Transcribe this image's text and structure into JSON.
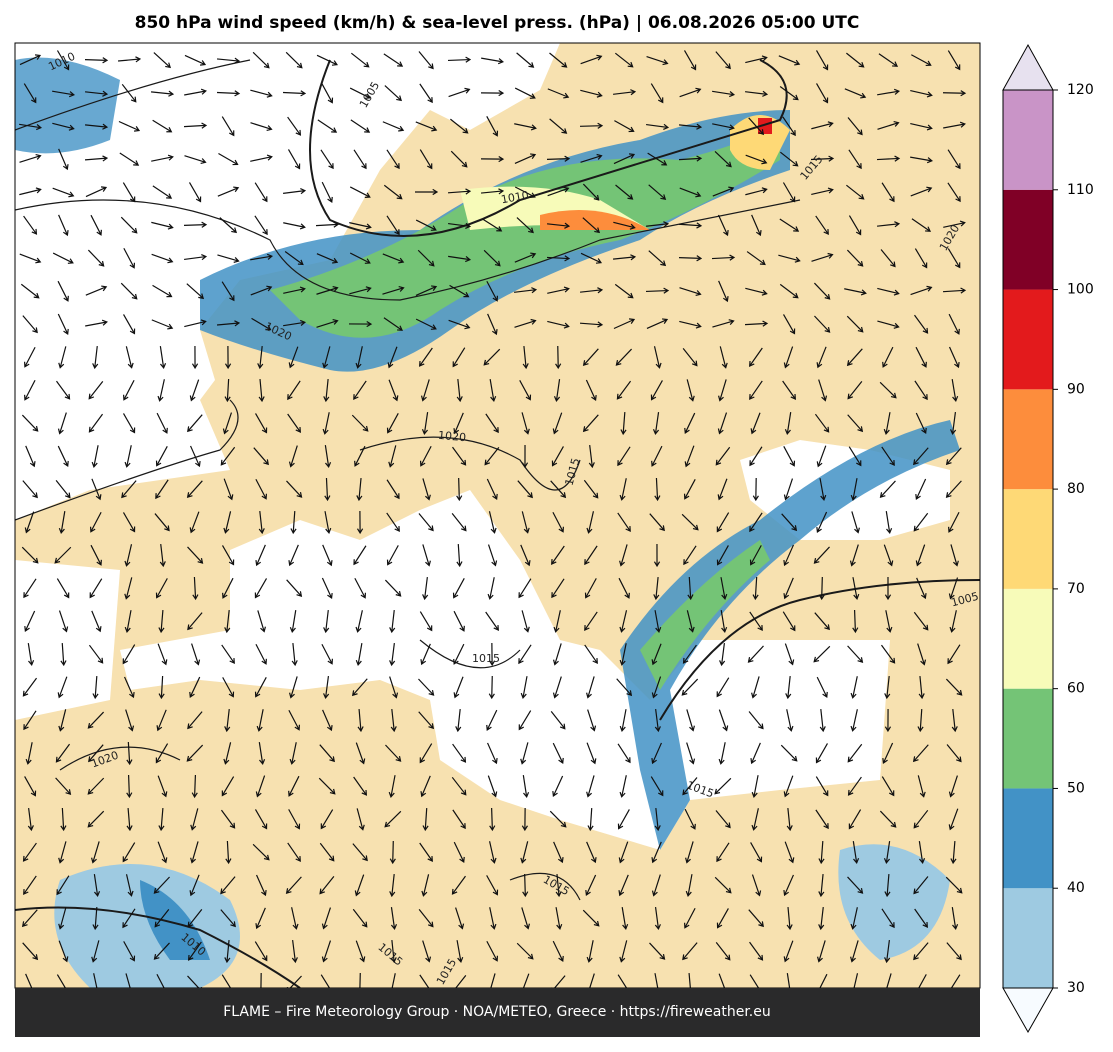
{
  "title": "850 hPa wind speed (km/h) & sea-level press. (hPa)  |  06.08.2026 05:00 UTC",
  "colorbar": {
    "ticks": [
      30,
      40,
      50,
      60,
      70,
      80,
      90,
      100,
      110,
      120
    ],
    "colors": [
      "#9ecae1",
      "#4292c6",
      "#74c476",
      "#f7fbb9",
      "#fed976",
      "#fd8d3c",
      "#e31a1c",
      "#800026",
      "#c994c7"
    ],
    "under_color": "#f7fbff",
    "over_color": "#e7e1ef"
  },
  "contour_labels": [
    "1010",
    "1005",
    "1010",
    "1015",
    "1020",
    "1020",
    "1020",
    "1015",
    "1015",
    "1020",
    "1015",
    "1015",
    "1010",
    "1015",
    "1015",
    "1005"
  ],
  "footer": "FLAME – Fire Meteorology Group · NOA/METEO, Greece · https://fireweather.eu"
}
